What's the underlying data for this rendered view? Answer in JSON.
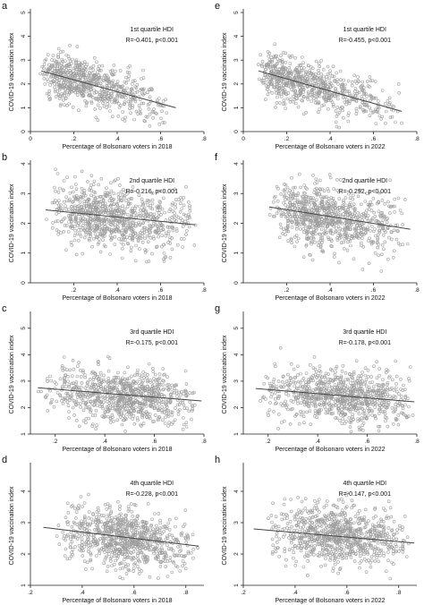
{
  "chart_data": [
    {
      "id": "a",
      "type": "scatter",
      "title": "",
      "panel_label": "a",
      "annotation": {
        "quartile": "1st quartile HDI",
        "stat": "R=-0.401, p<0.001"
      },
      "xlabel": "Percentage of Bolsonaro voters in 2018",
      "ylabel": "COVID-19 vaccination index",
      "xlim": [
        0,
        0.8
      ],
      "ylim": [
        0,
        5
      ],
      "xticks": [
        0,
        0.2,
        0.4,
        0.6,
        0.8
      ],
      "xtick_labels": [
        "0",
        ".2",
        ".4",
        ".6",
        ".8"
      ],
      "yticks": [
        0,
        1,
        2,
        3,
        4,
        5
      ],
      "ytick_labels": [
        "0",
        "1",
        "2",
        "3",
        "4",
        "5"
      ],
      "grid": false,
      "cloud": {
        "x_range": [
          0.05,
          0.67
        ],
        "x_peak": 0.14,
        "y_mean_at_min": 2.55,
        "y_mean_at_max": 1.0,
        "y_spread": 0.5,
        "n": 700
      },
      "fit_line": {
        "x": [
          0.05,
          0.67
        ],
        "y": [
          2.55,
          1.0
        ]
      }
    },
    {
      "id": "b",
      "type": "scatter",
      "title": "",
      "panel_label": "b",
      "annotation": {
        "quartile": "2nd quartile HDI",
        "stat": "R=-0.216, p<0.001"
      },
      "xlabel": "Percentage of Bolsonaro voters in 2018",
      "ylabel": "COVID-19 vaccination index",
      "xlim": [
        0,
        0.8
      ],
      "ylim": [
        0,
        4
      ],
      "xticks": [
        0.2,
        0.4,
        0.6,
        0.8
      ],
      "xtick_labels": [
        ".2",
        ".4",
        ".6",
        ".8"
      ],
      "yticks": [
        0,
        1,
        2,
        3,
        4
      ],
      "ytick_labels": [
        "0",
        "1",
        "2",
        "3",
        "4"
      ],
      "grid": false,
      "cloud": {
        "x_range": [
          0.07,
          0.78
        ],
        "x_peak": 0.3,
        "y_mean_at_min": 2.4,
        "y_mean_at_max": 1.9,
        "y_spread": 0.5,
        "n": 850
      },
      "fit_line": {
        "x": [
          0.07,
          0.76
        ],
        "y": [
          2.45,
          1.95
        ]
      }
    },
    {
      "id": "c",
      "type": "scatter",
      "title": "",
      "panel_label": "c",
      "annotation": {
        "quartile": "3rd quartile HDI",
        "stat": "R=-0.175, p<0.001"
      },
      "xlabel": "Percentage of Bolsonaro voters in 2018",
      "ylabel": "COVID-19 vaccination index",
      "xlim": [
        0.1,
        0.8
      ],
      "ylim": [
        1,
        5.5
      ],
      "xticks": [
        0.2,
        0.4,
        0.6,
        0.8
      ],
      "xtick_labels": [
        ".2",
        ".4",
        ".6",
        ".8"
      ],
      "yticks": [
        1,
        2,
        3,
        4,
        5
      ],
      "ytick_labels": [
        "1",
        "2",
        "3",
        "4",
        "5"
      ],
      "grid": false,
      "cloud": {
        "x_range": [
          0.13,
          0.78
        ],
        "x_peak": 0.52,
        "y_mean_at_min": 2.7,
        "y_mean_at_max": 2.2,
        "y_spread": 0.5,
        "n": 850
      },
      "fit_line": {
        "x": [
          0.13,
          0.79
        ],
        "y": [
          2.75,
          2.25
        ]
      }
    },
    {
      "id": "d",
      "type": "scatter",
      "title": "",
      "panel_label": "d",
      "annotation": {
        "quartile": "4th quartile HDI",
        "stat": "R=-0.228, p<0.001"
      },
      "xlabel": "Percentage of Bolsonaro voters in 2018",
      "ylabel": "COVID-19 vaccination index",
      "xlim": [
        0.2,
        0.87
      ],
      "ylim": [
        1,
        4.8
      ],
      "xticks": [
        0.2,
        0.4,
        0.6,
        0.8
      ],
      "xtick_labels": [
        ".2",
        ".4",
        ".6",
        ".8"
      ],
      "yticks": [
        1,
        2,
        3,
        4
      ],
      "ytick_labels": [
        "1",
        "2",
        "3",
        "4"
      ],
      "grid": false,
      "cloud": {
        "x_range": [
          0.3,
          0.85
        ],
        "x_peak": 0.56,
        "y_mean_at_min": 2.8,
        "y_mean_at_max": 2.25,
        "y_spread": 0.45,
        "n": 850
      },
      "fit_line": {
        "x": [
          0.25,
          0.85
        ],
        "y": [
          2.85,
          2.25
        ]
      }
    },
    {
      "id": "e",
      "type": "scatter",
      "title": "",
      "panel_label": "e",
      "annotation": {
        "quartile": "1st quartile HDI",
        "stat": "R=-0.455, p<0.001"
      },
      "xlabel": "Percentage of Bolsonaro voters in 2022",
      "ylabel": "COVID-19 vaccination index",
      "xlim": [
        0,
        0.8
      ],
      "ylim": [
        0,
        5
      ],
      "xticks": [
        0,
        0.2,
        0.4,
        0.6,
        0.8
      ],
      "xtick_labels": [
        "0",
        ".2",
        ".4",
        ".6",
        ".8"
      ],
      "yticks": [
        0,
        1,
        2,
        3,
        4,
        5
      ],
      "ytick_labels": [
        "0",
        "1",
        "2",
        "3",
        "4",
        "5"
      ],
      "grid": false,
      "cloud": {
        "x_range": [
          0.07,
          0.74
        ],
        "x_peak": 0.15,
        "y_mean_at_min": 2.55,
        "y_mean_at_max": 0.85,
        "y_spread": 0.5,
        "n": 700
      },
      "fit_line": {
        "x": [
          0.07,
          0.73
        ],
        "y": [
          2.55,
          0.85
        ]
      }
    },
    {
      "id": "f",
      "type": "scatter",
      "title": "",
      "panel_label": "f",
      "annotation": {
        "quartile": "2nd quartile HDI",
        "stat": "R=-0.292, p<0.001"
      },
      "xlabel": "Percentage of Bolsonaro voters in 2022",
      "ylabel": "COVID-19 vaccination index",
      "xlim": [
        0,
        0.8
      ],
      "ylim": [
        0,
        4
      ],
      "xticks": [
        0.2,
        0.4,
        0.6,
        0.8
      ],
      "xtick_labels": [
        ".2",
        ".4",
        ".6",
        ".8"
      ],
      "yticks": [
        0,
        1,
        2,
        3,
        4
      ],
      "ytick_labels": [
        "0",
        "1",
        "2",
        "3",
        "4"
      ],
      "grid": false,
      "cloud": {
        "x_range": [
          0.12,
          0.78
        ],
        "x_peak": 0.3,
        "y_mean_at_min": 2.5,
        "y_mean_at_max": 1.75,
        "y_spread": 0.5,
        "n": 850
      },
      "fit_line": {
        "x": [
          0.12,
          0.77
        ],
        "y": [
          2.55,
          1.8
        ]
      }
    },
    {
      "id": "g",
      "type": "scatter",
      "title": "",
      "panel_label": "g",
      "annotation": {
        "quartile": "3rd quartile HDI",
        "stat": "R=-0.178, p<0.001"
      },
      "xlabel": "Percentage of Bolsonaro voters in 2022",
      "ylabel": "COVID-19 vaccination index",
      "xlim": [
        0.1,
        0.8
      ],
      "ylim": [
        1,
        5.5
      ],
      "xticks": [
        0.2,
        0.4,
        0.6,
        0.8
      ],
      "xtick_labels": [
        ".2",
        ".4",
        ".6",
        ".8"
      ],
      "yticks": [
        1,
        2,
        3,
        4,
        5
      ],
      "ytick_labels": [
        "1",
        "2",
        "3",
        "4",
        "5"
      ],
      "grid": false,
      "cloud": {
        "x_range": [
          0.15,
          0.79
        ],
        "x_peak": 0.55,
        "y_mean_at_min": 2.7,
        "y_mean_at_max": 2.2,
        "y_spread": 0.5,
        "n": 850
      },
      "fit_line": {
        "x": [
          0.15,
          0.79
        ],
        "y": [
          2.72,
          2.22
        ]
      }
    },
    {
      "id": "h",
      "type": "scatter",
      "title": "",
      "panel_label": "h",
      "annotation": {
        "quartile": "4th quartile HDI",
        "stat": "R=-0.147, p<0.001"
      },
      "xlabel": "Percentage of Bolsonaro voters in 2022",
      "ylabel": "COVID-19 vaccination index",
      "xlim": [
        0.2,
        0.87
      ],
      "ylim": [
        1,
        4.8
      ],
      "xticks": [
        0.2,
        0.4,
        0.6,
        0.8
      ],
      "xtick_labels": [
        ".2",
        ".4",
        ".6",
        ".8"
      ],
      "yticks": [
        1,
        2,
        3,
        4
      ],
      "ytick_labels": [
        "1",
        "2",
        "3",
        "4"
      ],
      "grid": false,
      "cloud": {
        "x_range": [
          0.28,
          0.85
        ],
        "x_peak": 0.58,
        "y_mean_at_min": 2.8,
        "y_mean_at_max": 2.35,
        "y_spread": 0.45,
        "n": 850
      },
      "fit_line": {
        "x": [
          0.24,
          0.86
        ],
        "y": [
          2.8,
          2.35
        ]
      }
    }
  ],
  "colors": {
    "marker": "#9e9e9e",
    "fit_line": "#444444",
    "axis": "#222222",
    "text": "#111111"
  }
}
